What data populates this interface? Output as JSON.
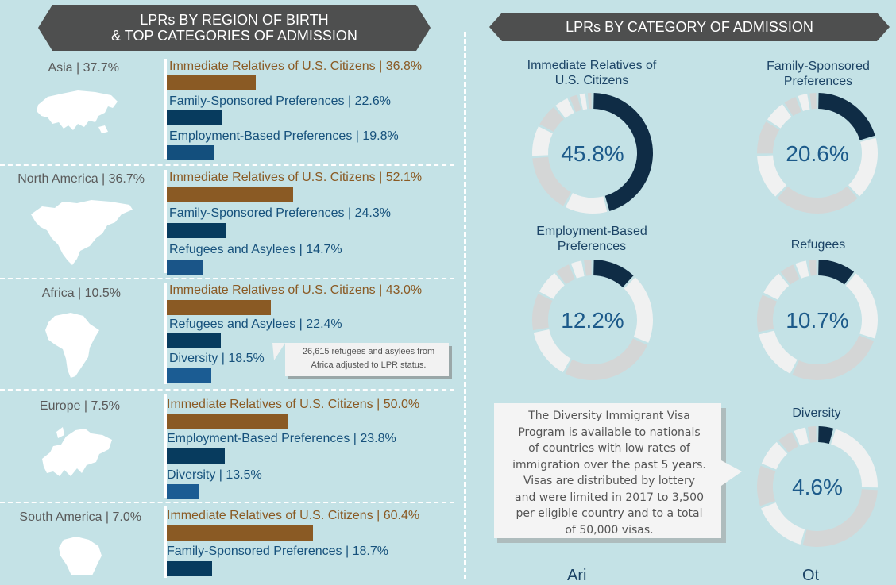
{
  "left_banner": {
    "line1": "LPRs BY REGION OF BIRTH",
    "line2": "& TOP CATEGORIES OF ADMISSION"
  },
  "right_banner": {
    "title": "LPRs BY CATEGORY OF ADMISSION"
  },
  "colors": {
    "immediate": "#8a5a24",
    "family": "#073b5e",
    "employment": "#134f7d",
    "refugees": "#1a5588",
    "diversity": "#1b5c93",
    "donut_dark": "#0f2c45",
    "donut_mid": "#d4d6d6",
    "donut_light": "#f0f1f1"
  },
  "regions": [
    {
      "label": "Asia | 37.7%",
      "categories": [
        {
          "label": "Immediate Relatives of U.S. Citizens | 36.8%",
          "pct": 36.8,
          "kind": "immediate"
        },
        {
          "label": "Family-Sponsored Preferences | 22.6%",
          "pct": 22.6,
          "kind": "family"
        },
        {
          "label": "Employment-Based Preferences | 19.8%",
          "pct": 19.8,
          "kind": "employment"
        }
      ]
    },
    {
      "label": "North America | 36.7%",
      "categories": [
        {
          "label": "Immediate Relatives of U.S. Citizens | 52.1%",
          "pct": 52.1,
          "kind": "immediate"
        },
        {
          "label": "Family-Sponsored Preferences | 24.3%",
          "pct": 24.3,
          "kind": "family"
        },
        {
          "label": "Refugees and Asylees | 14.7%",
          "pct": 14.7,
          "kind": "refugees"
        }
      ]
    },
    {
      "label": "Africa | 10.5%",
      "categories": [
        {
          "label": "Immediate Relatives of U.S. Citizens | 43.0%",
          "pct": 43.0,
          "kind": "immediate"
        },
        {
          "label": "Refugees and Asylees | 22.4%",
          "pct": 22.4,
          "kind": "family"
        },
        {
          "label": "Diversity | 18.5%",
          "pct": 18.5,
          "kind": "diversity"
        }
      ]
    },
    {
      "label": "Europe | 7.5%",
      "categories": [
        {
          "label": "Immediate Relatives of U.S. Citizens | 50.0%",
          "pct": 50.0,
          "kind": "immediate"
        },
        {
          "label": "Employment-Based Preferences | 23.8%",
          "pct": 23.8,
          "kind": "family"
        },
        {
          "label": "Diversity | 13.5%",
          "pct": 13.5,
          "kind": "diversity"
        }
      ]
    },
    {
      "label": "South America | 7.0%",
      "categories": [
        {
          "label": "Immediate Relatives of U.S. Citizens | 60.4%",
          "pct": 60.4,
          "kind": "immediate"
        },
        {
          "label": "Family-Sponsored Preferences | 18.7%",
          "pct": 18.7,
          "kind": "family"
        }
      ]
    }
  ],
  "africa_note": {
    "line1": "26,615 refugees and asylees from",
    "line2": "Africa adjusted to LPR status."
  },
  "donuts": [
    {
      "label_line1": "Immediate Relatives of",
      "label_line2": "U.S. Citizens",
      "value_text": "45.8%",
      "value": 45.8
    },
    {
      "label_line1": "Family-Sponsored",
      "label_line2": "Preferences",
      "value_text": "20.6%",
      "value": 20.6
    },
    {
      "label_line1": "Employment-Based",
      "label_line2": "Preferences",
      "value_text": "12.2%",
      "value": 12.2
    },
    {
      "label_line1": "Refugees",
      "label_line2": "",
      "value_text": "10.7%",
      "value": 10.7
    },
    {
      "label_line1": "Diversity",
      "label_line2": "",
      "value_text": "4.6%",
      "value": 4.6
    }
  ],
  "diversity_box": {
    "lines": [
      "The Diversity Immigrant Visa",
      "Program is available to nationals",
      "of countries with low rates of",
      "immigration over the past 5 years.",
      "Visas are distributed by lottery",
      "and were limited in 2017 to 3,500",
      "per eligible country and to a total",
      "of 50,000 visas."
    ]
  },
  "bottom_cut": {
    "left": "Ari",
    "right": "Ot"
  },
  "chart_data": [
    {
      "type": "bar",
      "title": "LPRs BY REGION OF BIRTH & TOP CATEGORIES OF ADMISSION",
      "series": [
        {
          "name": "Asia | 37.7%",
          "categories": [
            "Immediate Relatives of U.S. Citizens",
            "Family-Sponsored Preferences",
            "Employment-Based Preferences"
          ],
          "values": [
            36.8,
            22.6,
            19.8
          ]
        },
        {
          "name": "North America | 36.7%",
          "categories": [
            "Immediate Relatives of U.S. Citizens",
            "Family-Sponsored Preferences",
            "Refugees and Asylees"
          ],
          "values": [
            52.1,
            24.3,
            14.7
          ]
        },
        {
          "name": "Africa | 10.5%",
          "categories": [
            "Immediate Relatives of U.S. Citizens",
            "Refugees and Asylees",
            "Diversity"
          ],
          "values": [
            43.0,
            22.4,
            18.5
          ]
        },
        {
          "name": "Europe | 7.5%",
          "categories": [
            "Immediate Relatives of U.S. Citizens",
            "Employment-Based Preferences",
            "Diversity"
          ],
          "values": [
            50.0,
            23.8,
            13.5
          ]
        },
        {
          "name": "South America | 7.0%",
          "categories": [
            "Immediate Relatives of U.S. Citizens",
            "Family-Sponsored Preferences"
          ],
          "values": [
            60.4,
            18.7
          ]
        }
      ],
      "xlim": [
        0,
        100
      ]
    },
    {
      "type": "pie",
      "title": "LPRs BY CATEGORY OF ADMISSION",
      "categories": [
        "Immediate Relatives of U.S. Citizens",
        "Family-Sponsored Preferences",
        "Employment-Based Preferences",
        "Refugees",
        "Diversity"
      ],
      "values": [
        45.8,
        20.6,
        12.2,
        10.7,
        4.6
      ]
    }
  ]
}
